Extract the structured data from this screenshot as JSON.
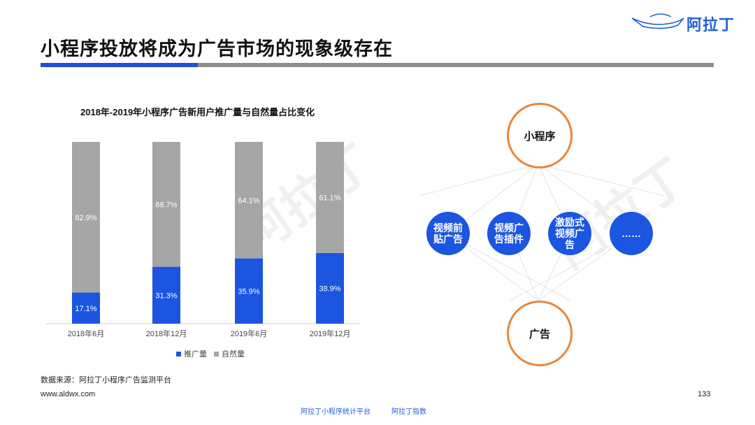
{
  "header": {
    "title": "小程序投放将成为广告市场的现象级存在",
    "logo_text": "阿拉丁"
  },
  "colors": {
    "accent_blue": "#1b55e0",
    "gray_bar": "#a6a6a6",
    "orange": "#e8863a",
    "rule_gray": "#8c8c8c"
  },
  "chart_data": {
    "type": "bar",
    "stacked": true,
    "title": "2018年-2019年小程序广告新用户推广量与自然量占比变化",
    "categories": [
      "2018年6月",
      "2018年12月",
      "2019年6月",
      "2019年12月"
    ],
    "series": [
      {
        "name": "推广量",
        "values": [
          17.1,
          31.3,
          35.9,
          38.9
        ],
        "labels": [
          "17.1%",
          "31.3%",
          "35.9%",
          "38.9%"
        ],
        "color": "#1b55e0"
      },
      {
        "name": "自然量",
        "values": [
          82.9,
          68.7,
          64.1,
          61.1
        ],
        "labels": [
          "82.9%",
          "68.7%",
          "64.1%",
          "61.1%"
        ],
        "color": "#a6a6a6"
      }
    ],
    "ylim": [
      0,
      100
    ],
    "legend": "bottom-center"
  },
  "diagram": {
    "top": "小程序",
    "bottom": "广告",
    "nodes": [
      "视频前贴广告",
      "视频广告插件",
      "激励式视频广告",
      "……"
    ]
  },
  "footer": {
    "source": "数据来源：阿拉丁小程序广告监测平台",
    "site": "www.aldwx.com",
    "page_number": "133",
    "links": [
      "阿拉丁小程序统计平台",
      "阿拉丁指数"
    ]
  }
}
